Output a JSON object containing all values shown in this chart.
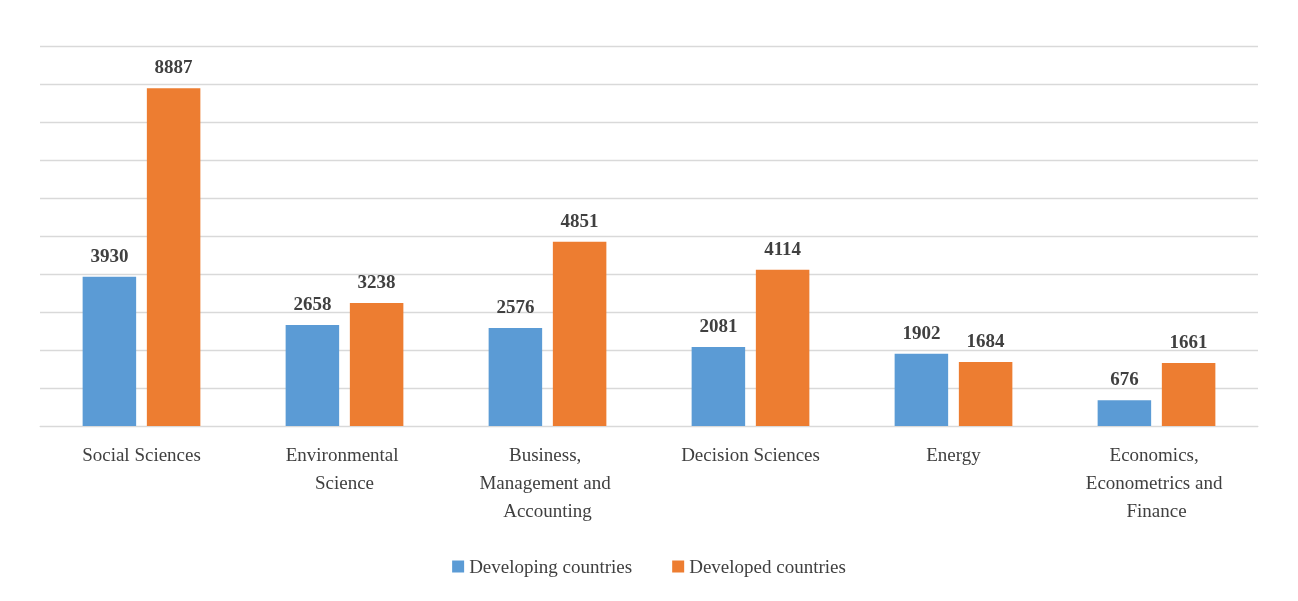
{
  "chart_data": {
    "type": "bar",
    "categories": [
      "Social Sciences",
      "Environmental Science",
      "Business, Management and Accounting",
      "Decision Sciences",
      "Energy",
      "Economics, Econometrics and Finance"
    ],
    "series": [
      {
        "name": "Developing countries",
        "color": "#5b9bd5",
        "values": [
          3930,
          2658,
          2576,
          2081,
          1902,
          676
        ]
      },
      {
        "name": "Developed countries",
        "color": "#ed7d31",
        "values": [
          8887,
          3238,
          4851,
          4114,
          1684,
          1661
        ]
      }
    ],
    "ylim": [
      0,
      10000
    ],
    "yticks": [
      0,
      1000,
      2000,
      3000,
      4000,
      5000,
      6000,
      7000,
      8000,
      9000,
      10000
    ],
    "tick_labels": "x",
    "grid": "y",
    "legend": "bottom",
    "data_labels": true
  }
}
